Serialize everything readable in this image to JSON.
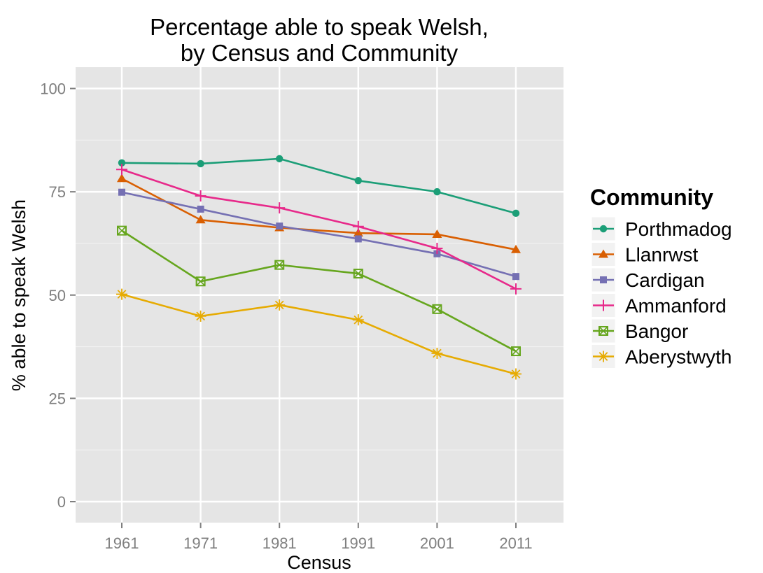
{
  "chart_data": {
    "type": "line",
    "title_line1": "Percentage able to speak Welsh,",
    "title_line2": "by Census and Community",
    "xlabel": "Census",
    "ylabel": "% able to speak Welsh",
    "x": [
      1961,
      1971,
      1981,
      1991,
      2001,
      2011
    ],
    "x_tick_labels": [
      "1961",
      "1971",
      "1981",
      "1991",
      "2001",
      "2011"
    ],
    "ylim": [
      0,
      100
    ],
    "y_ticks": [
      0,
      25,
      50,
      75,
      100
    ],
    "y_tick_labels": [
      "0",
      "25",
      "50",
      "75",
      "100"
    ],
    "grid": true,
    "legend_title": "Community",
    "legend_position": "right",
    "series": [
      {
        "name": "Porthmadog",
        "color": "#1b9e77",
        "marker": "circle",
        "values": [
          82,
          81.8,
          83,
          77.7,
          75,
          69.8
        ]
      },
      {
        "name": "Llanrwst",
        "color": "#d95f02",
        "marker": "triangle",
        "values": [
          78.2,
          68.2,
          66.3,
          65,
          64.7,
          61
        ]
      },
      {
        "name": "Cardigan",
        "color": "#7570b3",
        "marker": "square",
        "values": [
          74.9,
          70.8,
          66.7,
          63.6,
          60,
          54.5
        ]
      },
      {
        "name": "Ammanford",
        "color": "#e7298a",
        "marker": "plus",
        "values": [
          80.4,
          74,
          71.1,
          66.6,
          61.3,
          51.5
        ]
      },
      {
        "name": "Bangor",
        "color": "#66a61e",
        "marker": "boxed-x",
        "values": [
          65.6,
          53.3,
          57.3,
          55.2,
          46.6,
          36.4
        ]
      },
      {
        "name": "Aberystwyth",
        "color": "#e6ab02",
        "marker": "asterisk",
        "values": [
          50.2,
          44.9,
          47.6,
          44,
          35.9,
          30.9
        ]
      }
    ]
  }
}
